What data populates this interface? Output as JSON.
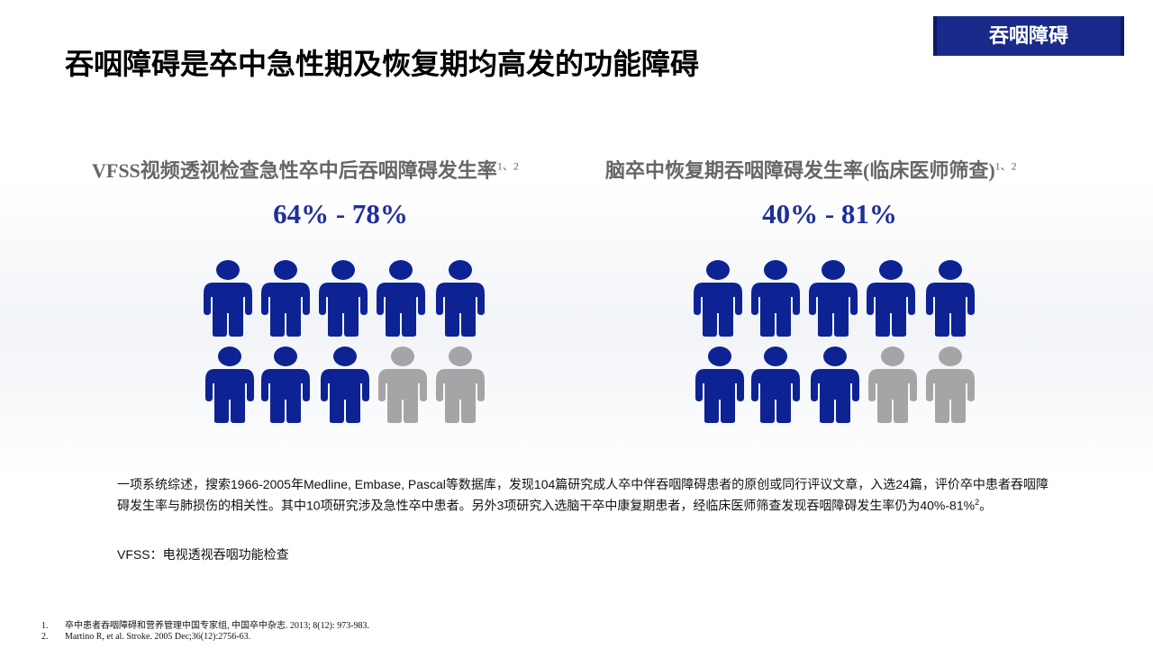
{
  "header": {
    "title": "吞咽障碍是卒中急性期及恢复期均高发的功能障碍",
    "tag": "吞咽障碍"
  },
  "panels": [
    {
      "heading": "VFSS视频透视检查急性卒中后吞咽障碍发生率",
      "sup": "1、2",
      "range": "64% - 78%"
    },
    {
      "heading": "脑卒中恢复期吞咽障碍发生率(临床医师筛查)",
      "sup": "1、2",
      "range": "40% - 81%"
    }
  ],
  "body": {
    "paragraph": {
      "text": "一项系统综述，搜索1966-2005年Medline, Embase, Pascal等数据库，发现104篇研究成人卒中伴吞咽障碍患者的原创或同行评议文章，入选24篇，评价卒中患者吞咽障碍发生率与肺损伤的相关性。其中10项研究涉及急性卒中患者。另外3项研究入选脑干卒中康复期患者，经临床医师筛查发现吞咽障碍发生率仍为40%-81%",
      "sup": "2",
      "end": "。"
    },
    "note": "VFSS：电视透视吞咽功能检查"
  },
  "references": [
    {
      "num": "1.",
      "text": "卒中患者吞咽障碍和营养管理中国专家组, 中国卒中杂志. 2013; 8(12): 973-983."
    },
    {
      "num": "2.",
      "text": "Martino R, et al. Stroke. 2005 Dec;36(12):2756-63."
    }
  ]
}
